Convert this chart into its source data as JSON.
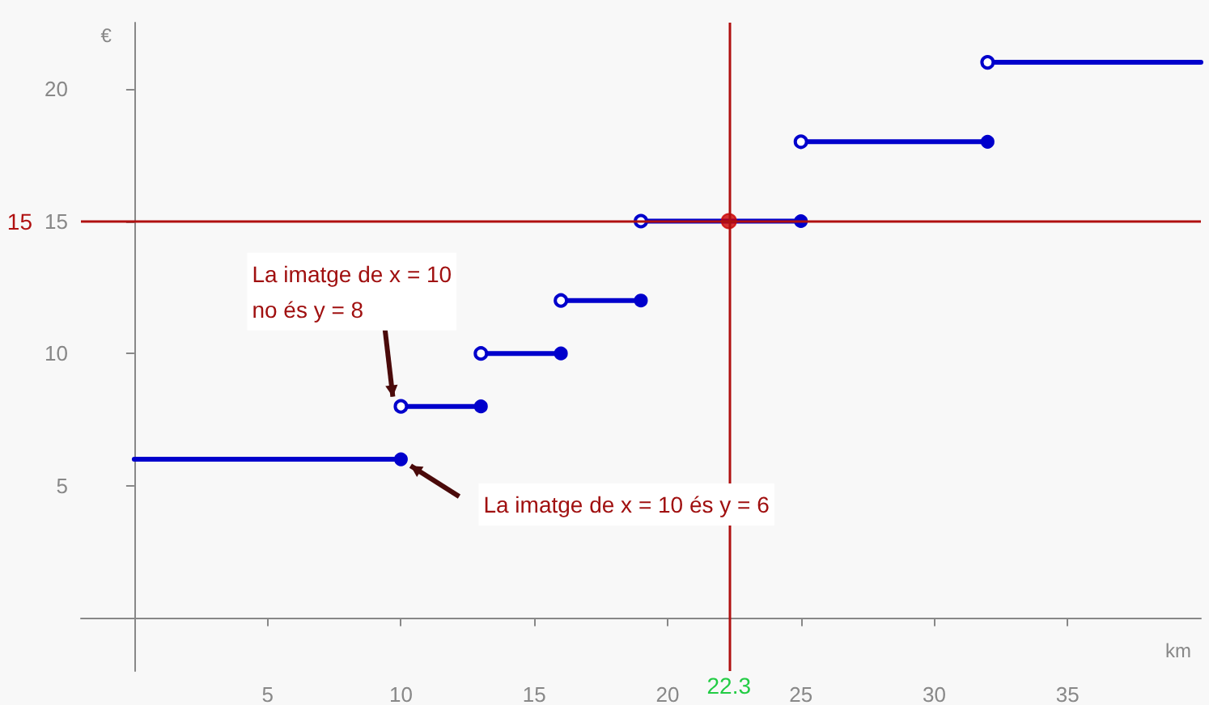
{
  "chart_data": {
    "type": "line",
    "xlabel": "km",
    "ylabel": "€",
    "xlim": [
      -2,
      40
    ],
    "ylim": [
      -2,
      22.5
    ],
    "xticks": [
      5,
      10,
      15,
      20,
      25,
      30,
      35
    ],
    "yticks": [
      5,
      10,
      15,
      20
    ],
    "grid": false,
    "marker": "circle",
    "line_style": "solid",
    "series": [
      {
        "color": "#0000cc",
        "x": [
          0,
          10
        ],
        "values": [
          6,
          6
        ]
      },
      {
        "color": "#0000cc",
        "x": [
          10,
          13
        ],
        "values": [
          8,
          8
        ]
      },
      {
        "color": "#0000cc",
        "x": [
          13,
          16
        ],
        "values": [
          10,
          10
        ]
      },
      {
        "color": "#0000cc",
        "x": [
          16,
          19
        ],
        "values": [
          12,
          12
        ]
      },
      {
        "color": "#0000cc",
        "x": [
          19,
          25
        ],
        "values": [
          15,
          15
        ]
      },
      {
        "color": "#0000cc",
        "x": [
          25,
          32
        ],
        "values": [
          18,
          18
        ]
      },
      {
        "color": "#0000cc",
        "x": [
          32,
          40
        ],
        "values": [
          21,
          21
        ]
      },
      {
        "type": "scatter",
        "color": "#cc0000",
        "x": [
          22.3
        ],
        "values": [
          15
        ]
      }
    ],
    "ref_lines": [
      {
        "axis": "y",
        "value": 15,
        "label": "15",
        "color": "#b01010"
      },
      {
        "axis": "x",
        "value": 22.3,
        "label": "22.3",
        "color": "#b01010"
      }
    ],
    "annotations": [
      {
        "text": "La imatge de x = 10\nno és y = 8",
        "x": 10,
        "y": 8
      },
      {
        "text": "La imatge de x = 10 és y = 6",
        "x": 10,
        "y": 6
      }
    ]
  }
}
